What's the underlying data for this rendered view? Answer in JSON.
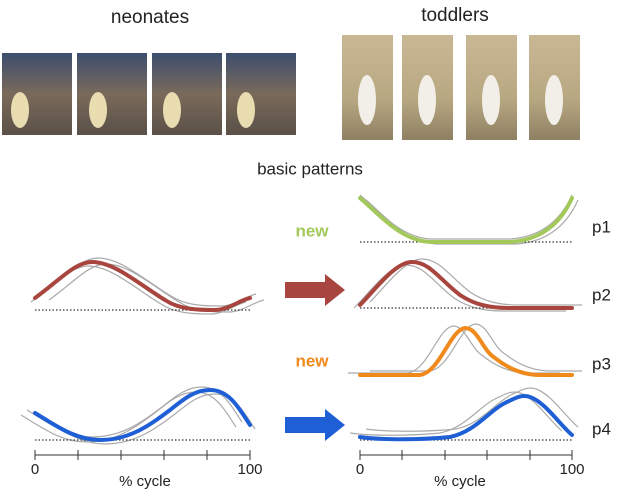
{
  "header": {
    "left": "neonates",
    "right": "toddlers"
  },
  "section_title": "basic patterns",
  "labels": {
    "p1_new": "new",
    "p3_new": "new"
  },
  "patterns": [
    "p1",
    "p2",
    "p3",
    "p4"
  ],
  "axes": [
    {
      "start": "0",
      "end": "100",
      "label": "% cycle"
    },
    {
      "start": "0",
      "end": "100",
      "label": "% cycle"
    }
  ]
}
